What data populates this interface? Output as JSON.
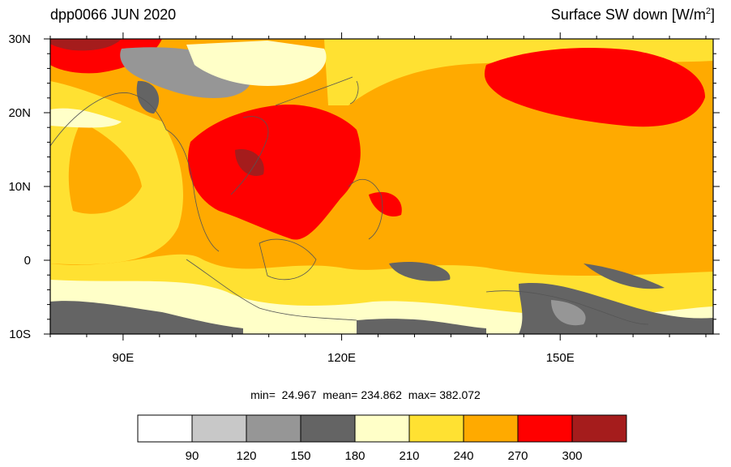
{
  "title": {
    "left": "dpp0066 JUN 2020",
    "right_main": "Surface SW down [W/m",
    "right_sup": "2",
    "right_end": "]"
  },
  "map": {
    "lon_range": [
      80,
      171
    ],
    "lat_range": [
      -10,
      30
    ],
    "lat_ticks": [
      {
        "lat": 30,
        "label": "30N"
      },
      {
        "lat": 20,
        "label": "20N"
      },
      {
        "lat": 10,
        "label": "10N"
      },
      {
        "lat": 0,
        "label": "0"
      },
      {
        "lat": -10,
        "label": "10S"
      }
    ],
    "lon_ticks": [
      {
        "lon": 90,
        "label": "90E"
      },
      {
        "lon": 120,
        "label": "120E"
      },
      {
        "lon": 150,
        "label": "150E"
      }
    ]
  },
  "stats": {
    "text": "min=  24.967  mean= 234.862  max= 382.072"
  },
  "colorbar": {
    "colors": [
      "#ffffff",
      "#c8c8c8",
      "#969696",
      "#646464",
      "#ffffc8",
      "#ffe132",
      "#ffaa00",
      "#ff0000",
      "#a51c1c"
    ],
    "labels": [
      "90",
      "120",
      "150",
      "180",
      "210",
      "240",
      "270",
      "300"
    ]
  }
}
